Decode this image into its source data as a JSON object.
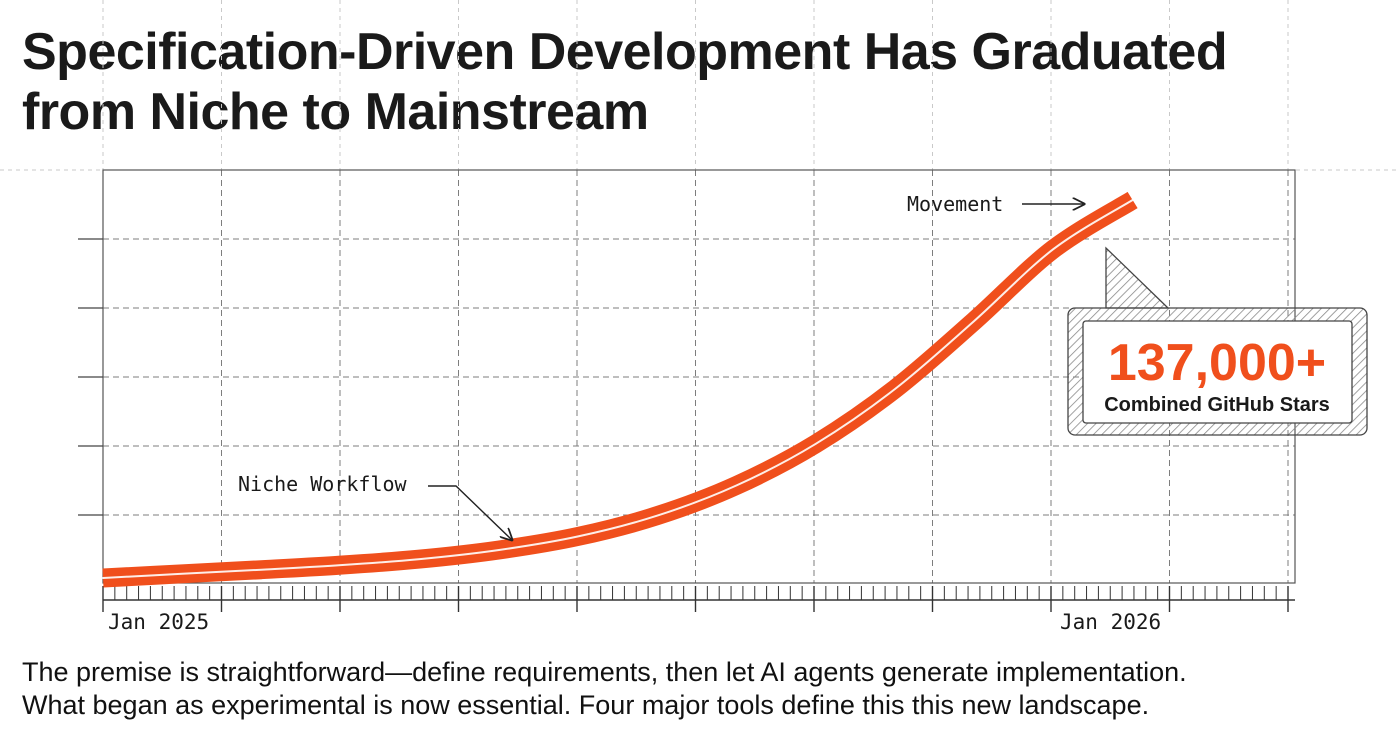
{
  "title": "Specification-Driven Development Has Graduated\nfrom Niche to Mainstream",
  "colors": {
    "curve": "#f04f1c",
    "text": "#1a1a1a",
    "grid": "#7a7a7a",
    "accent": "#f04f1c"
  },
  "chart_data": {
    "type": "line",
    "title": "",
    "xlabel": "",
    "ylabel": "",
    "x_ticks": [
      "Jan 2025",
      "Jan 2026"
    ],
    "x": [
      "2025-01",
      "2025-02",
      "2025-03",
      "2025-04",
      "2025-05",
      "2025-06",
      "2025-07",
      "2025-08",
      "2025-09",
      "2025-10",
      "2025-11",
      "2025-12",
      "2026-01",
      "2026-02"
    ],
    "series": [
      {
        "values": [
          0.0,
          1.1,
          2.2,
          3.4,
          5.0,
          7.4,
          11.0,
          16.5,
          24.5,
          35.5,
          50.0,
          68.0,
          87.0,
          100.0
        ]
      }
    ],
    "y_range": [
      0,
      100
    ],
    "y_tick_labels": "none",
    "grid": true,
    "legend": "none",
    "annotations": [
      {
        "text": "Niche Workflow",
        "target": "2025-05",
        "arrow": true
      },
      {
        "text": "Movement",
        "target": "2026-02",
        "arrow": true
      }
    ],
    "callout": {
      "value": "137,000+",
      "label": "Combined GitHub Stars",
      "target": "2026-01"
    }
  },
  "caption": {
    "line1": "The premise is straightforward—define requirements, then let AI agents generate implementation.",
    "line2": "What began as experimental is now essential. Four major tools define this this new landscape."
  }
}
